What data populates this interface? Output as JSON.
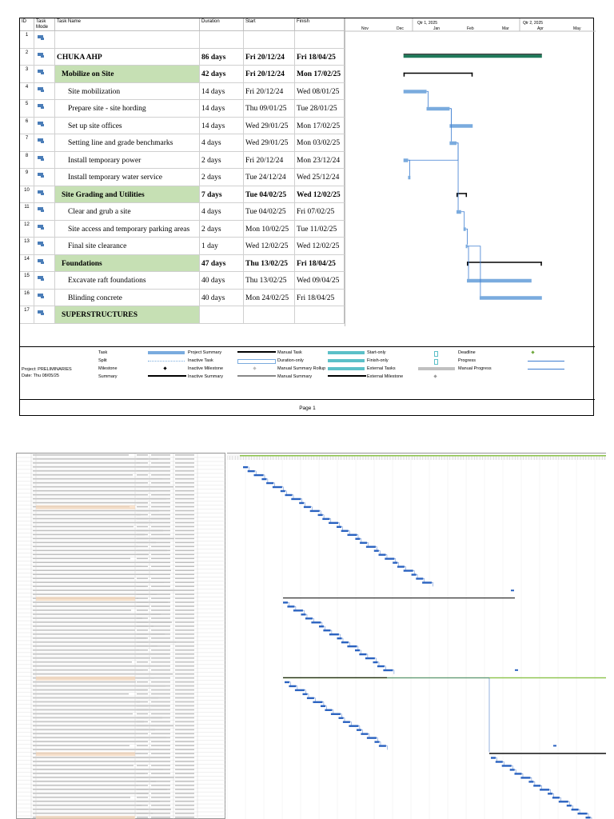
{
  "headers": {
    "id": "ID",
    "mode": "Task Mode",
    "name": "Task Name",
    "duration": "Duration",
    "start": "Start",
    "finish": "Finish"
  },
  "timescale": {
    "quarters": [
      "Qtr 1, 2025",
      "Qtr 2, 2025"
    ],
    "months": [
      "Nov",
      "Dec",
      "Jan",
      "Feb",
      "Mar",
      "Apr",
      "May"
    ]
  },
  "tasks": [
    {
      "id": "1",
      "name": "",
      "duration": "",
      "start": "",
      "finish": "",
      "summary": false
    },
    {
      "id": "2",
      "name": "CHUKA AHP",
      "duration": "86 days",
      "start": "Fri 20/12/24",
      "finish": "Fri 18/04/25",
      "summary": true,
      "project": true
    },
    {
      "id": "3",
      "name": "Mobilize on Site",
      "duration": "42 days",
      "start": "Fri 20/12/24",
      "finish": "Mon 17/02/25",
      "summary": true
    },
    {
      "id": "4",
      "name": "Site mobilization",
      "duration": "14 days",
      "start": "Fri 20/12/24",
      "finish": "Wed 08/01/25",
      "summary": false
    },
    {
      "id": "5",
      "name": "Prepare site - site hording",
      "duration": "14 days",
      "start": "Thu 09/01/25",
      "finish": "Tue 28/01/25",
      "summary": false
    },
    {
      "id": "6",
      "name": "Set up site offices",
      "duration": "14 days",
      "start": "Wed 29/01/25",
      "finish": "Mon 17/02/25",
      "summary": false
    },
    {
      "id": "7",
      "name": "Setting line and grade benchmarks",
      "duration": "4 days",
      "start": "Wed 29/01/25",
      "finish": "Mon 03/02/25",
      "summary": false
    },
    {
      "id": "8",
      "name": "Install temporary power",
      "duration": "2 days",
      "start": "Fri 20/12/24",
      "finish": "Mon 23/12/24",
      "summary": false
    },
    {
      "id": "9",
      "name": "Install temporary water service",
      "duration": "2 days",
      "start": "Tue 24/12/24",
      "finish": "Wed 25/12/24",
      "summary": false
    },
    {
      "id": "10",
      "name": "Site Grading and Utilities",
      "duration": "7 days",
      "start": "Tue 04/02/25",
      "finish": "Wed 12/02/25",
      "summary": true
    },
    {
      "id": "11",
      "name": "Clear and grub a site",
      "duration": "4 days",
      "start": "Tue 04/02/25",
      "finish": "Fri 07/02/25",
      "summary": false
    },
    {
      "id": "12",
      "name": "Site access and temporary parking areas",
      "duration": "2 days",
      "start": "Mon 10/02/25",
      "finish": "Tue 11/02/25",
      "summary": false
    },
    {
      "id": "13",
      "name": "Final site clearance",
      "duration": "1 day",
      "start": "Wed 12/02/25",
      "finish": "Wed 12/02/25",
      "summary": false
    },
    {
      "id": "14",
      "name": "Foundations",
      "duration": "47 days",
      "start": "Thu 13/02/25",
      "finish": "Fri 18/04/25",
      "summary": true
    },
    {
      "id": "15",
      "name": "Excavate raft foundations",
      "duration": "40 days",
      "start": "Thu 13/02/25",
      "finish": "Wed 09/04/25",
      "summary": false
    },
    {
      "id": "16",
      "name": "Blinding concrete",
      "duration": "40 days",
      "start": "Mon 24/02/25",
      "finish": "Fri 18/04/25",
      "summary": false
    },
    {
      "id": "17",
      "name": "SUPERSTRUCTURES",
      "duration": "",
      "start": "",
      "finish": "",
      "summary": true
    }
  ],
  "footer": {
    "project": "Project: PRELIMINARIES",
    "date": "Date: Thu 08/05/25",
    "page": "Page 1"
  },
  "legend": [
    [
      "Task",
      "Split",
      "Milestone",
      "Summary"
    ],
    [
      "Project Summary",
      "Inactive Task",
      "Inactive Milestone",
      "Inactive Summary"
    ],
    [
      "Manual Task",
      "Duration-only",
      "Manual Summary Rollup",
      "Manual Summary"
    ],
    [
      "Start-only",
      "Finish-only",
      "External Tasks",
      "External Milestone"
    ],
    [
      "Deadline",
      "Progress",
      "Manual Progress"
    ]
  ],
  "colors": {
    "task": "#7aabde",
    "summary_fill": "#c6e0b4",
    "bar_dark": "#000000",
    "link": "#3d7dd1",
    "project_bar": "#1f7a5a"
  }
}
